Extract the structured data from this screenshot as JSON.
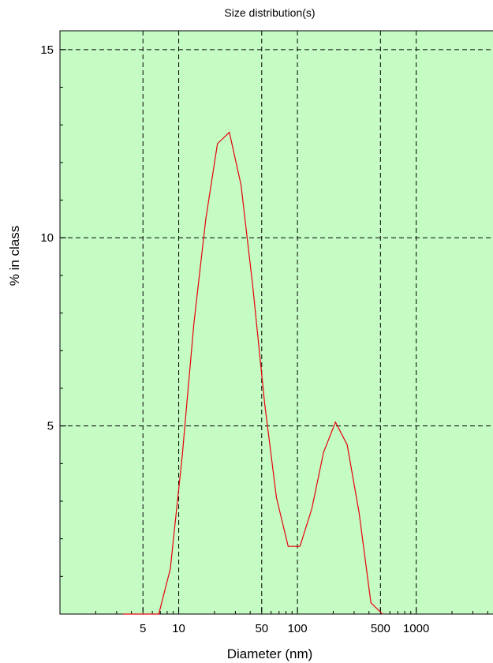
{
  "chart_data": {
    "type": "line",
    "title": "Size distribution(s)",
    "xlabel": "Diameter (nm)",
    "ylabel": "% in class",
    "x_scale": "log",
    "xlim": [
      1,
      4500
    ],
    "ylim": [
      0,
      15.5
    ],
    "grid": true,
    "grid_style": "dashed",
    "plot_background": "#c4fcc4",
    "x_major_ticks": [
      {
        "value": 5,
        "label": "5"
      },
      {
        "value": 10,
        "label": "10"
      },
      {
        "value": 50,
        "label": "50"
      },
      {
        "value": 100,
        "label": "100"
      },
      {
        "value": 500,
        "label": "500"
      },
      {
        "value": 1000,
        "label": "1000"
      }
    ],
    "x_minor_ticks": [
      2,
      3,
      4,
      6,
      7,
      8,
      9,
      20,
      30,
      40,
      60,
      70,
      80,
      90,
      200,
      300,
      400,
      600,
      700,
      800,
      900,
      2000,
      3000,
      4000
    ],
    "y_major_ticks": [
      {
        "value": 5,
        "label": "5"
      },
      {
        "value": 10,
        "label": "10"
      },
      {
        "value": 15,
        "label": "15"
      }
    ],
    "y_minor_ticks": [
      1,
      2,
      3,
      4,
      6,
      7,
      8,
      9,
      11,
      12,
      13,
      14
    ],
    "series": [
      {
        "color": "#e8000b",
        "x": [
          3.4,
          4.3,
          5.4,
          6.8,
          8.5,
          10.7,
          13.4,
          16.9,
          21.2,
          26.7,
          33.5,
          42.1,
          52.9,
          66.5,
          83.5,
          105,
          132,
          166,
          209,
          262,
          330,
          415,
          521
        ],
        "y": [
          0,
          0,
          0,
          0,
          1.2,
          4.2,
          7.7,
          10.5,
          12.5,
          12.8,
          11.4,
          8.7,
          5.6,
          3.1,
          1.8,
          1.8,
          2.8,
          4.3,
          5.1,
          4.5,
          2.7,
          0.3,
          0
        ]
      }
    ]
  }
}
